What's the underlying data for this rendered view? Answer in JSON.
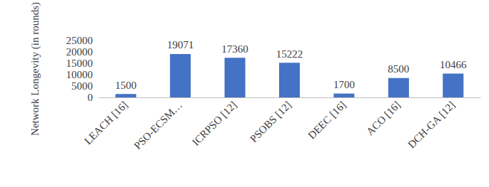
{
  "chart_data": {
    "type": "bar",
    "y_label": "Network Longevity (in rounds)",
    "categories": [
      "LEACH [16]",
      "PSO-ECSM…",
      "ICRPSO [12]",
      "PSOBS [12]",
      "DEEC [16]",
      "ACO [16]",
      "DCH-GA [12]"
    ],
    "values": [
      1500,
      19071,
      17360,
      15222,
      1700,
      8500,
      10466
    ],
    "color": "#4472c4",
    "ylim": [
      0,
      25000
    ],
    "yticks": [
      0,
      5000,
      10000,
      15000,
      20000,
      25000
    ],
    "grid": false,
    "data_labels": true
  }
}
